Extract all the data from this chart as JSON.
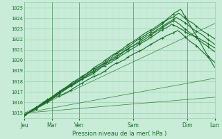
{
  "title": "",
  "xlabel": "Pression niveau de la mer( hPa )",
  "bg_color": "#c8ecd8",
  "grid_color_major": "#9ecfb0",
  "grid_color_minor": "#b8e0c8",
  "line_color": "#1a6b2a",
  "ylim": [
    1014.5,
    1025.5
  ],
  "xlim": [
    0,
    168
  ],
  "yticks": [
    1015,
    1016,
    1017,
    1018,
    1019,
    1020,
    1021,
    1022,
    1023,
    1024,
    1025
  ],
  "xtick_labels": [
    "Jeu",
    "Mar",
    "Ven",
    "Sam",
    "Dim",
    "Lun"
  ],
  "xtick_hours": [
    0,
    24,
    48,
    96,
    144,
    168
  ],
  "day_vlines": [
    0,
    24,
    48,
    96,
    144,
    168
  ],
  "minor_interval": 6
}
